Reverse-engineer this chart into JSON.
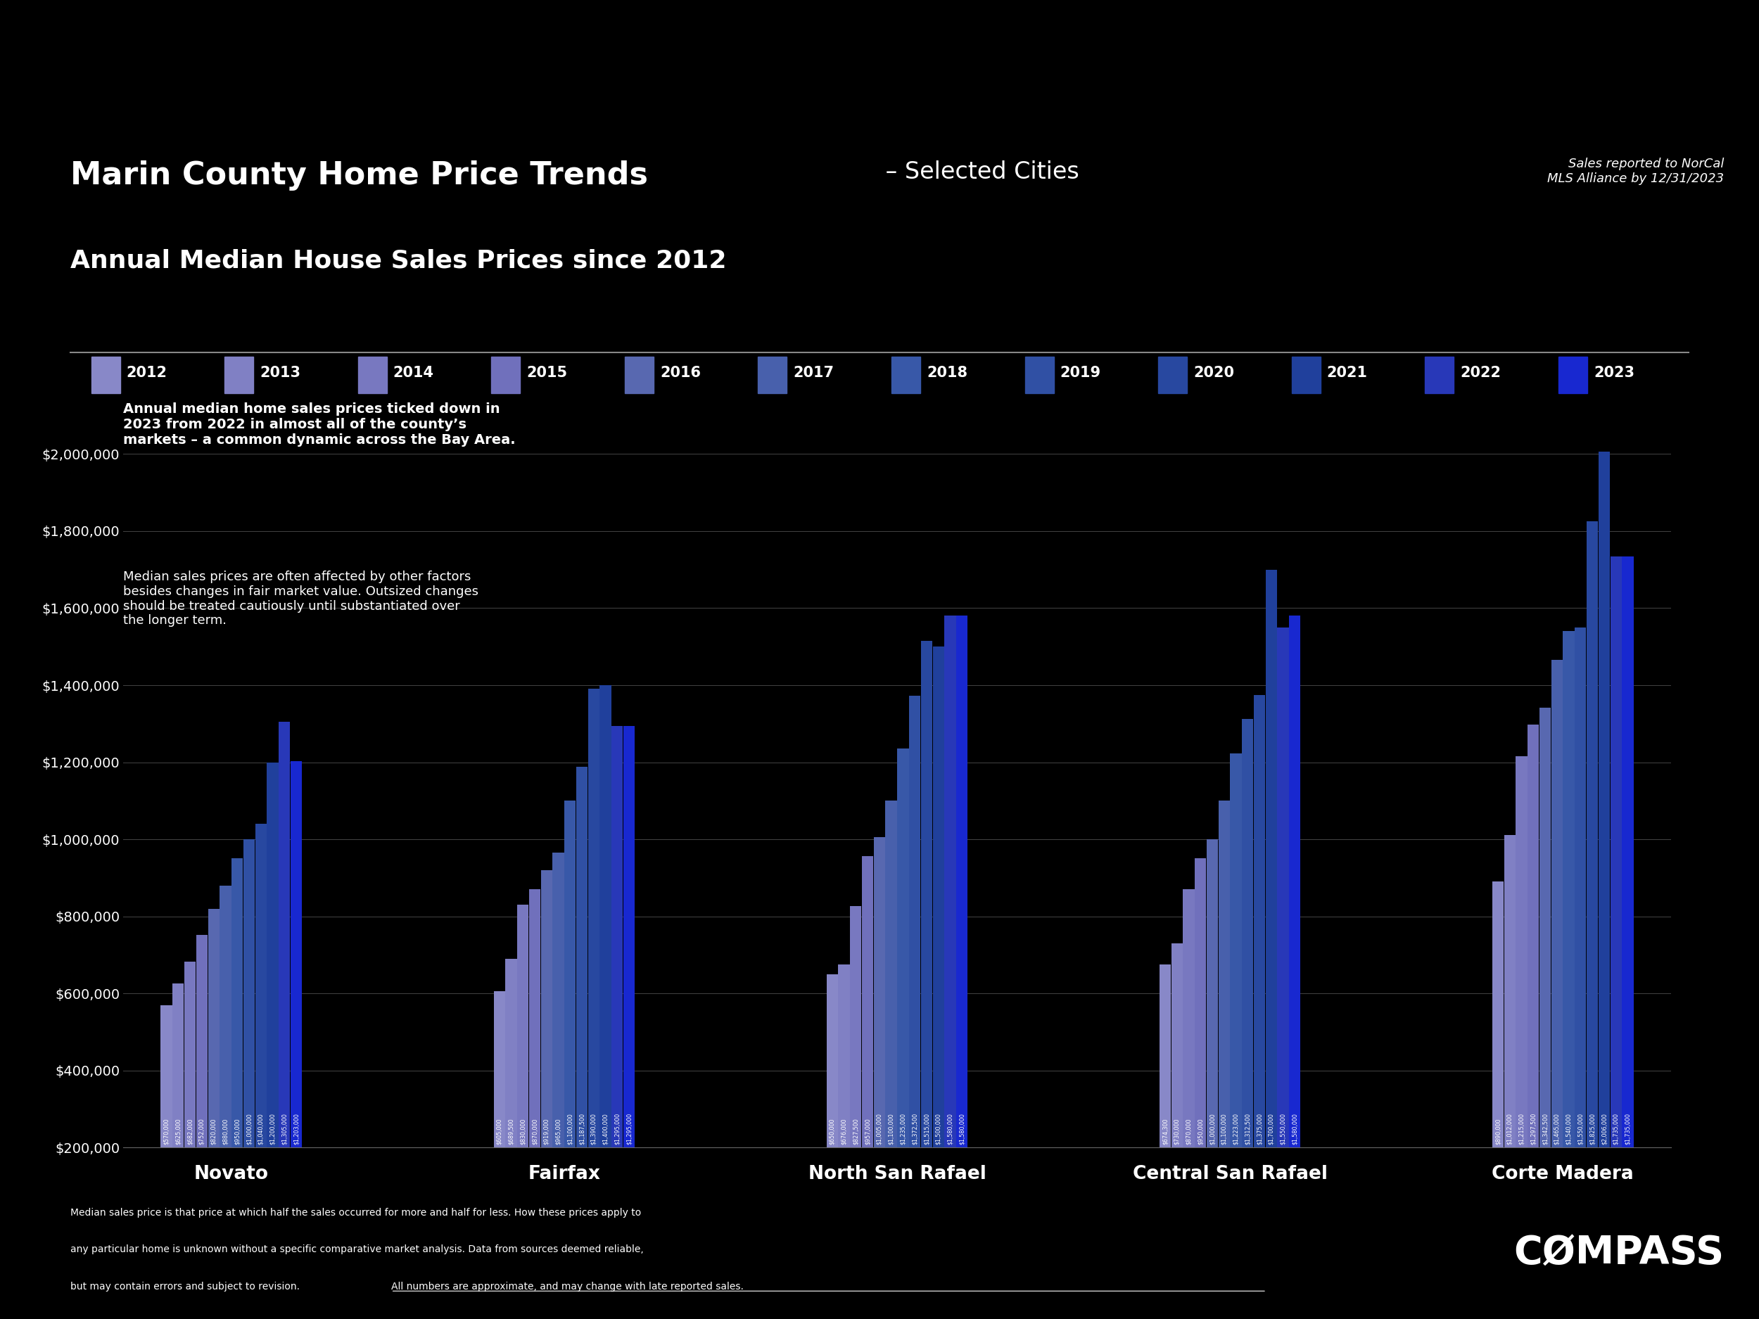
{
  "title_main": "Marin County Home Price Trends",
  "title_sub1": " – Selected Cities",
  "title_sub2": "Annual Median House Sales Prices since 2012",
  "top_right_text": "Sales reported to NorCal\nMLS Alliance by 12/31/2023",
  "years": [
    2012,
    2013,
    2014,
    2015,
    2016,
    2017,
    2018,
    2019,
    2020,
    2021,
    2022,
    2023
  ],
  "cities": [
    "Novato",
    "Fairfax",
    "North San Rafael",
    "Central San Rafael",
    "Corte Madera"
  ],
  "data": {
    "Novato": [
      570000,
      625000,
      682000,
      752000,
      820000,
      880000,
      950000,
      1000000,
      1040000,
      1200000,
      1305000,
      1203000
    ],
    "Fairfax": [
      605000,
      689500,
      830000,
      870000,
      919000,
      965000,
      1100000,
      1187500,
      1390000,
      1400000,
      1295000,
      1295000
    ],
    "North San Rafael": [
      650000,
      676000,
      827500,
      957000,
      1005000,
      1100000,
      1235000,
      1372500,
      1515000,
      1500000,
      1580000,
      1580000
    ],
    "Central San Rafael": [
      674300,
      730000,
      870000,
      950000,
      1000000,
      1100000,
      1223000,
      1312500,
      1375000,
      1700000,
      1550000,
      1580000
    ],
    "Corte Madera": [
      890000,
      1012000,
      1215000,
      1297500,
      1342500,
      1465000,
      1540000,
      1550000,
      1825000,
      2006000,
      1735000,
      1735000
    ]
  },
  "bar_colors": [
    "#8888C8",
    "#8080C4",
    "#7878C0",
    "#7070BC",
    "#5868B0",
    "#4860AC",
    "#3858A8",
    "#3050A4",
    "#2848A0",
    "#20409C",
    "#2838B8",
    "#1828D0"
  ],
  "background_color": "#000000",
  "text_color": "#FFFFFF",
  "ylim": [
    200000,
    2100000
  ],
  "yticks": [
    200000,
    400000,
    600000,
    800000,
    1000000,
    1200000,
    1400000,
    1600000,
    1800000,
    2000000
  ],
  "annotation1": "Annual median home sales prices ticked down in\n2023 from 2022 in almost all of the county’s\nmarkets – a common dynamic across the Bay Area.",
  "annotation2": "Median sales prices are often affected by other factors\nbesides changes in fair market value. Outsized changes\nshould be treated cautiously until substantiated over\nthe longer term.",
  "footer_line1": "Median sales price is that price at which half the sales occurred for more and half for less. How these prices apply to",
  "footer_line2": "any particular home is unknown without a specific comparative market analysis. Data from sources deemed reliable,",
  "footer_line3a": "but may contain errors and subject to revision. ",
  "footer_line3b": "All numbers are approximate, and may change with late reported sales.",
  "compass_text": "CØMPASS"
}
